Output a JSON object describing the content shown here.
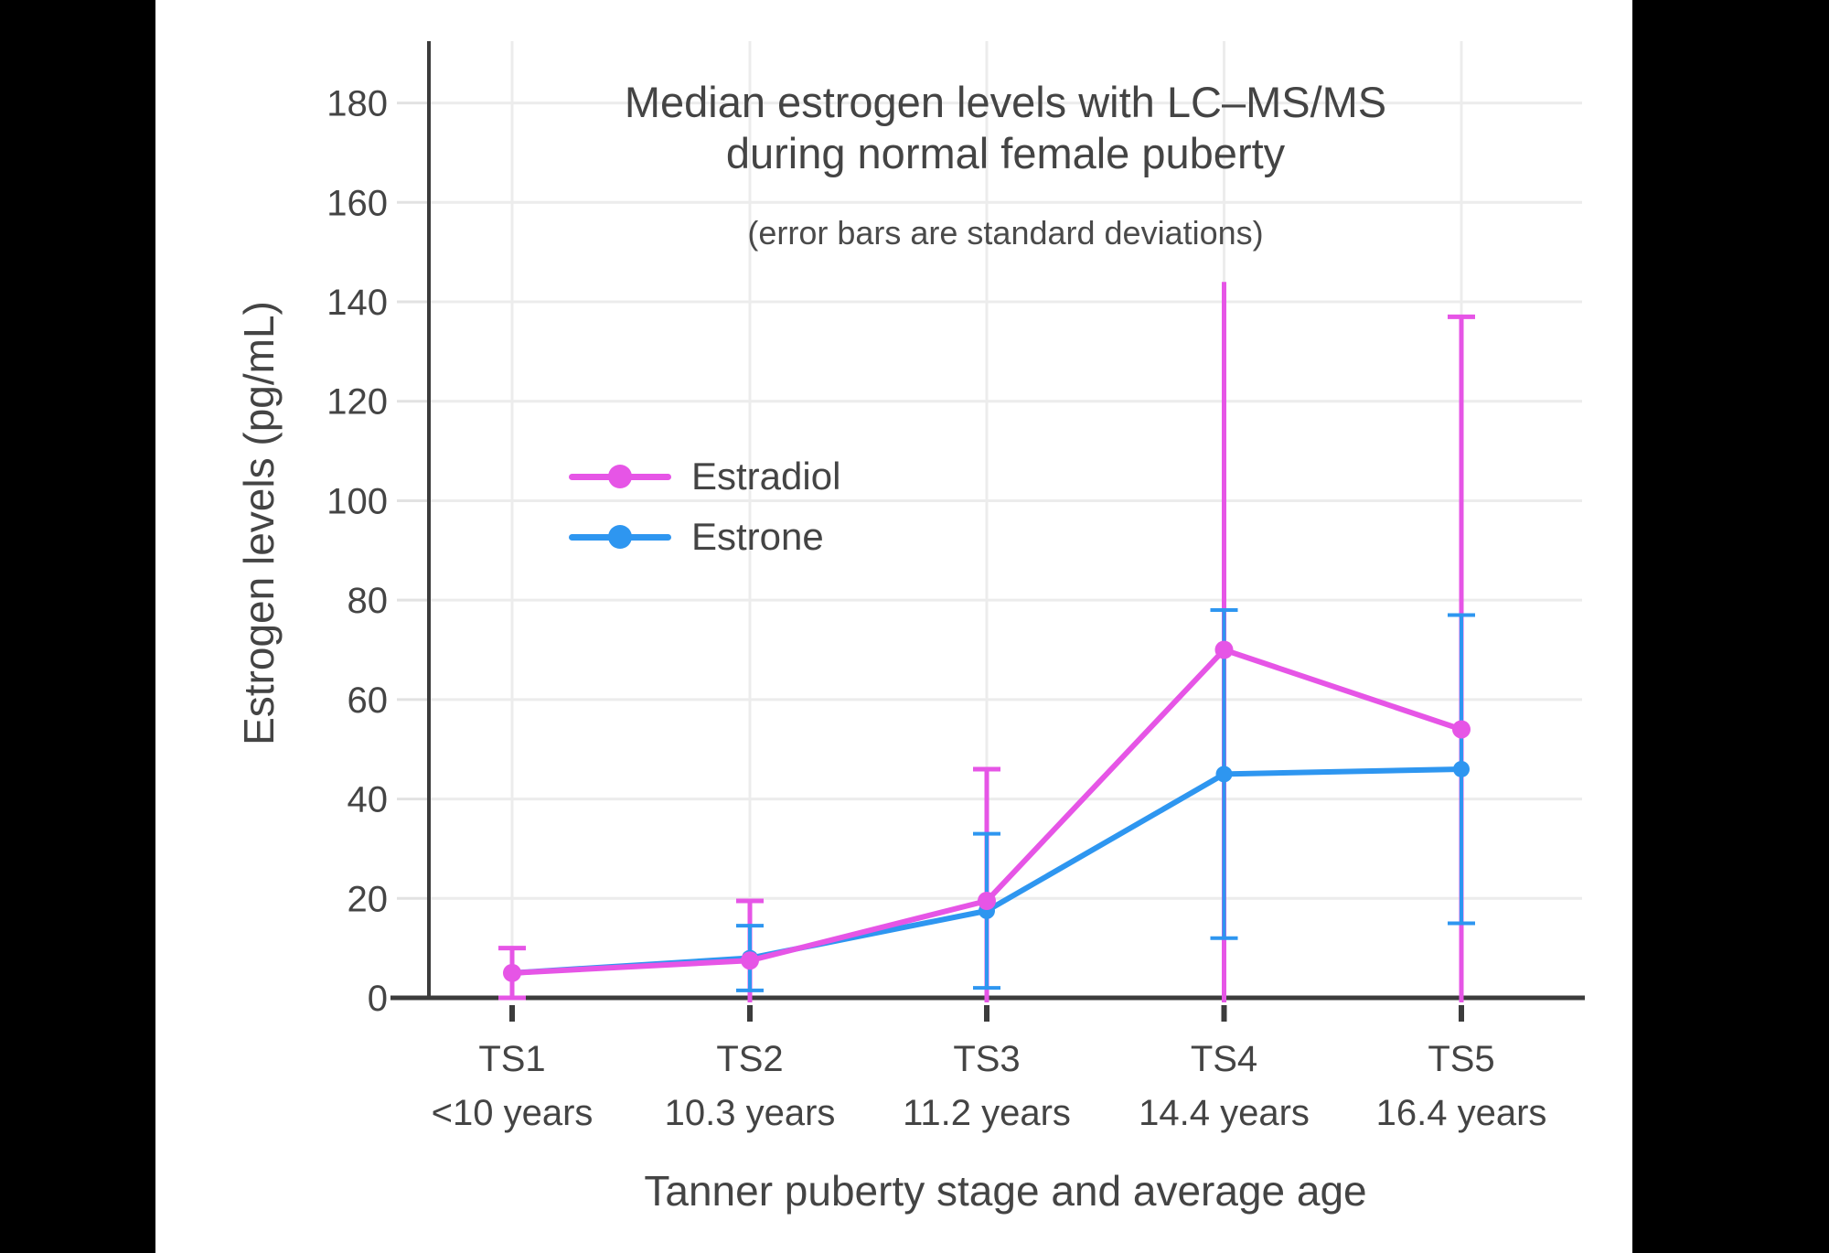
{
  "canvas": {
    "background": "#000000",
    "panel": "#FFFFFF"
  },
  "colors": {
    "axis": "#3C3C3C",
    "text": "#444444",
    "grid": "#ECECEC",
    "tick_stub": "#E2E2E2"
  },
  "chart_data": {
    "type": "line",
    "title_lines": [
      "Median estrogen levels with LC–MS/MS",
      "during normal female puberty"
    ],
    "subtitle": "(error bars are standard deviations)",
    "xlabel": "Tanner puberty stage and average age",
    "ylabel": "Estrogen levels (pg/mL)",
    "ylim": [
      0,
      190
    ],
    "yticks": [
      0,
      20,
      40,
      60,
      80,
      100,
      120,
      140,
      160,
      180
    ],
    "grid": true,
    "legend_position": "inside-upper-left",
    "error_bars_clipped_at_zero": true,
    "categories": [
      {
        "stage": "TS1",
        "age": "<10 years"
      },
      {
        "stage": "TS2",
        "age": "10.3 years"
      },
      {
        "stage": "TS3",
        "age": "11.2 years"
      },
      {
        "stage": "TS4",
        "age": "14.4 years"
      },
      {
        "stage": "TS5",
        "age": "16.4 years"
      }
    ],
    "series": [
      {
        "name": "Estradiol",
        "color": "#E655E6",
        "values": [
          5,
          7.5,
          19.5,
          70,
          54
        ],
        "sd": [
          5,
          12,
          26.5,
          74,
          83
        ]
      },
      {
        "name": "Estrone",
        "color": "#2E96F0",
        "values": [
          5,
          8,
          17.5,
          45,
          46
        ],
        "sd": [
          null,
          6.5,
          15.5,
          33,
          31
        ]
      }
    ]
  }
}
